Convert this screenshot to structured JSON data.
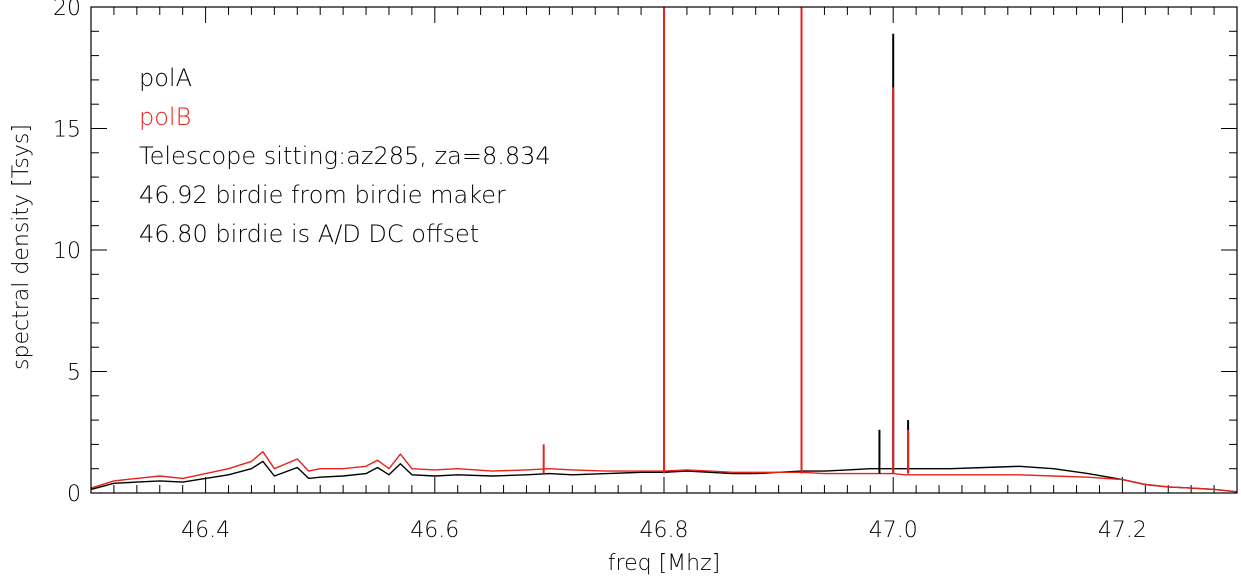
{
  "chart_data": {
    "type": "line",
    "title": "",
    "xlabel": "freq [Mhz]",
    "ylabel": "spectral density [Tsys]",
    "xlim": [
      46.3,
      47.3
    ],
    "ylim": [
      0,
      20
    ],
    "x_ticks": [
      {
        "value": 46.4,
        "label": "46.4"
      },
      {
        "value": 46.6,
        "label": "46.6"
      },
      {
        "value": 46.8,
        "label": "46.8"
      },
      {
        "value": 47.0,
        "label": "47.0"
      },
      {
        "value": 47.2,
        "label": "47.2"
      }
    ],
    "y_ticks": [
      {
        "value": 0,
        "label": "0"
      },
      {
        "value": 5,
        "label": "5"
      },
      {
        "value": 10,
        "label": "10"
      },
      {
        "value": 15,
        "label": "15"
      },
      {
        "value": 20,
        "label": "20"
      }
    ],
    "grid": false,
    "annotations": [
      {
        "text": "polA",
        "color": "#000000"
      },
      {
        "text": "polB",
        "color": "#e8221b"
      },
      {
        "text": "Telescope sitting:az285, za=8.834",
        "color": "#000000"
      },
      {
        "text": "46.92 birdie from birdie maker",
        "color": "#000000"
      },
      {
        "text": "46.80 birdie is A/D DC offset",
        "color": "#000000"
      }
    ],
    "series": [
      {
        "name": "polA",
        "color": "#000000",
        "x": [
          46.3,
          46.32,
          46.34,
          46.36,
          46.38,
          46.4,
          46.42,
          46.44,
          46.45,
          46.46,
          46.48,
          46.49,
          46.5,
          46.52,
          46.54,
          46.55,
          46.56,
          46.57,
          46.58,
          46.6,
          46.62,
          46.65,
          46.68,
          46.7,
          46.72,
          46.75,
          46.78,
          46.8,
          46.82,
          46.84,
          46.86,
          46.88,
          46.9,
          46.92,
          46.94,
          46.96,
          46.98,
          46.99,
          47.0,
          47.01,
          47.02,
          47.05,
          47.08,
          47.11,
          47.14,
          47.17,
          47.2,
          47.22,
          47.24,
          47.26,
          47.28,
          47.3
        ],
        "y": [
          0.15,
          0.4,
          0.45,
          0.5,
          0.45,
          0.6,
          0.75,
          1.0,
          1.3,
          0.7,
          1.05,
          0.6,
          0.65,
          0.7,
          0.8,
          1.05,
          0.75,
          1.2,
          0.75,
          0.7,
          0.75,
          0.7,
          0.75,
          0.8,
          0.75,
          0.8,
          0.85,
          0.85,
          0.9,
          0.85,
          0.8,
          0.8,
          0.85,
          0.9,
          0.9,
          0.95,
          1.0,
          1.0,
          1.0,
          1.0,
          1.0,
          1.0,
          1.05,
          1.1,
          1.0,
          0.8,
          0.55,
          0.35,
          0.25,
          0.2,
          0.15,
          0.05
        ]
      },
      {
        "name": "polB",
        "color": "#e8221b",
        "x": [
          46.3,
          46.32,
          46.34,
          46.36,
          46.38,
          46.4,
          46.42,
          46.44,
          46.45,
          46.46,
          46.48,
          46.49,
          46.5,
          46.52,
          46.54,
          46.55,
          46.56,
          46.57,
          46.58,
          46.6,
          46.62,
          46.65,
          46.68,
          46.7,
          46.72,
          46.75,
          46.78,
          46.8,
          46.82,
          46.84,
          46.86,
          46.88,
          46.9,
          46.92,
          46.94,
          46.96,
          46.98,
          46.99,
          47.0,
          47.01,
          47.02,
          47.05,
          47.08,
          47.11,
          47.14,
          47.17,
          47.2,
          47.22,
          47.24,
          47.26,
          47.28,
          47.3
        ],
        "y": [
          0.2,
          0.5,
          0.6,
          0.7,
          0.6,
          0.8,
          1.0,
          1.3,
          1.7,
          1.0,
          1.4,
          0.9,
          1.0,
          1.0,
          1.1,
          1.35,
          1.0,
          1.6,
          1.0,
          0.95,
          1.0,
          0.9,
          0.95,
          1.0,
          0.95,
          0.9,
          0.9,
          0.9,
          0.95,
          0.9,
          0.85,
          0.85,
          0.85,
          0.85,
          0.8,
          0.8,
          0.8,
          0.8,
          0.8,
          0.75,
          0.75,
          0.75,
          0.75,
          0.75,
          0.7,
          0.65,
          0.55,
          0.35,
          0.25,
          0.2,
          0.15,
          0.05
        ]
      }
    ],
    "spikes": [
      {
        "series": "polB",
        "x": 46.695,
        "y": 2.0
      },
      {
        "series": "polB",
        "x": 46.8,
        "y": 20.0
      },
      {
        "series": "polB",
        "x": 46.92,
        "y": 20.0
      },
      {
        "series": "polA",
        "x": 46.988,
        "y": 2.6
      },
      {
        "series": "polA",
        "x": 47.0,
        "y": 18.9
      },
      {
        "series": "polB",
        "x": 47.0,
        "y": 16.7
      },
      {
        "series": "polA",
        "x": 47.013,
        "y": 3.0
      },
      {
        "series": "polB",
        "x": 47.013,
        "y": 2.6
      }
    ]
  }
}
